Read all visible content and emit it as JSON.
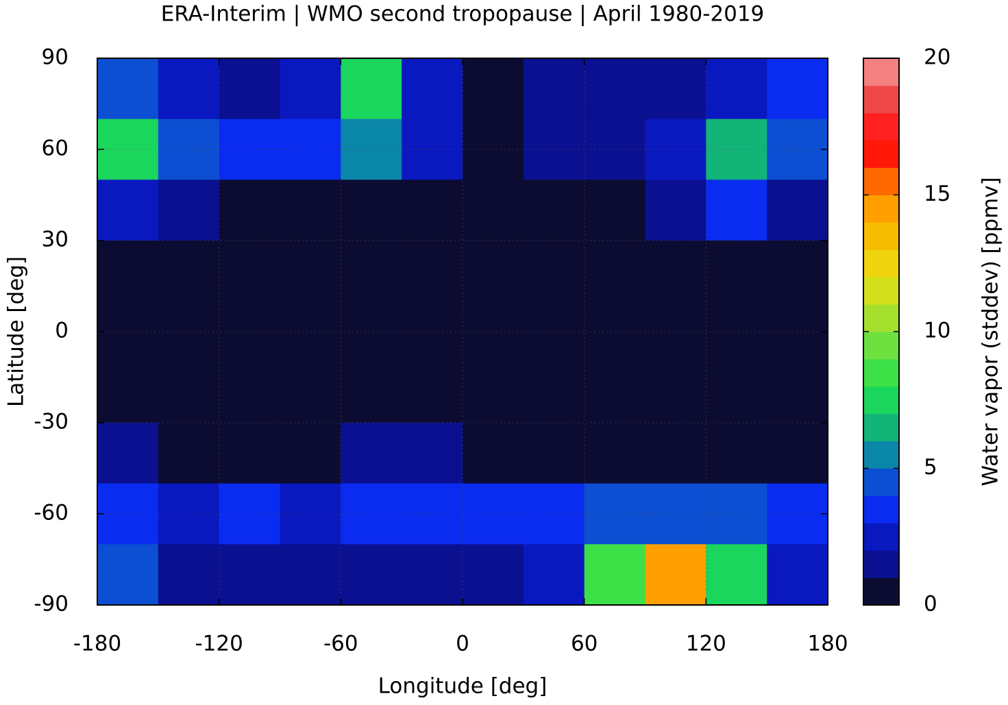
{
  "chart_data": {
    "type": "heatmap",
    "title": "ERA-Interim | WMO second tropopause | April 1980-2019",
    "x_label": "Longitude [deg]",
    "y_label": "Latitude [deg]",
    "xlim": [
      -180,
      180
    ],
    "ylim": [
      -90,
      90
    ],
    "xticks": [
      -180,
      -120,
      -60,
      0,
      60,
      120,
      180
    ],
    "yticks": [
      -90,
      -60,
      -30,
      0,
      30,
      60,
      90
    ],
    "grid": true,
    "z": [
      [
        4,
        2,
        1,
        2,
        7,
        2,
        0,
        1,
        1,
        1,
        2,
        3
      ],
      [
        7,
        4,
        3,
        3,
        5,
        2,
        0,
        1,
        1,
        2,
        6,
        4
      ],
      [
        2,
        1,
        0,
        0,
        0,
        0,
        0,
        0,
        0,
        1,
        3,
        1
      ],
      [
        0,
        0,
        0,
        0,
        0,
        0,
        0,
        0,
        0,
        0,
        0,
        0
      ],
      [
        0,
        0,
        0,
        0,
        0,
        0,
        0,
        0,
        0,
        0,
        0,
        0
      ],
      [
        0,
        0,
        0,
        0,
        0,
        0,
        0,
        0,
        0,
        0,
        0,
        0
      ],
      [
        1,
        0,
        0,
        0,
        1,
        1,
        0,
        0,
        0,
        0,
        0,
        0
      ],
      [
        3,
        2,
        3,
        2,
        3,
        3,
        3,
        3,
        4,
        4,
        4,
        3
      ],
      [
        4,
        1,
        1,
        1,
        1,
        1,
        1,
        2,
        8,
        14,
        7,
        2
      ]
    ],
    "colorbar": {
      "label": "Water vapor (stddev) [ppmv]",
      "lim": [
        0,
        20
      ],
      "ticks": [
        0,
        5,
        10,
        15,
        20
      ],
      "colors": [
        "#0c0c33",
        "#0a1090",
        "#0a18c0",
        "#0a2cf0",
        "#0c4fd2",
        "#0a86a8",
        "#12b478",
        "#1ad65c",
        "#3ee048",
        "#6ee040",
        "#a6e02e",
        "#d4e01c",
        "#efd40e",
        "#f5bc00",
        "#ffa000",
        "#ff6a00",
        "#ff1808",
        "#ff2020",
        "#f04848",
        "#f58080"
      ]
    }
  }
}
